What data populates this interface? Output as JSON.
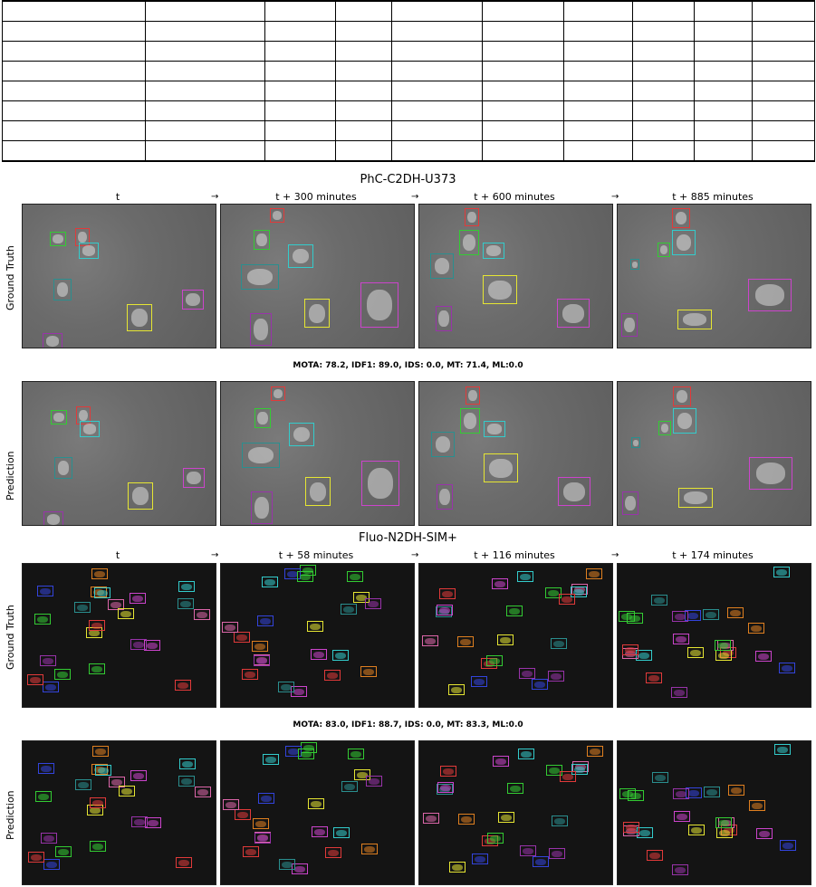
{
  "table": {
    "rows": 8,
    "cols": 10
  },
  "sections": [
    {
      "title": "PhC-C2DH-U373",
      "frame_labels": [
        "t",
        "t + 300 minutes",
        "t + 600 minutes",
        "t + 885 minutes"
      ],
      "arrow": "→",
      "row_labels": [
        "Ground Truth",
        "Prediction"
      ],
      "metrics": "MOTA: 78.2, IDF1: 89.0, IDS: 0.0, MT: 71.4, ML:0.0"
    },
    {
      "title": "Fluo-N2DH-SIM+",
      "frame_labels": [
        "t",
        "t + 58 minutes",
        "t + 116 minutes",
        "t + 174 minutes"
      ],
      "arrow": "→",
      "row_labels": [
        "Ground Truth",
        "Prediction"
      ],
      "metrics": "MOTA: 83.0, IDF1: 88.7, IDS: 0.0, MT: 83.3, ML:0.0"
    }
  ],
  "colors": {
    "red": "#e23a3a",
    "green": "#33cc33",
    "cyan": "#33cccc",
    "teal": "#2a8f8f",
    "yellow": "#e6e633",
    "magenta": "#cc44cc",
    "violet": "#9933aa",
    "blue": "#3344dd",
    "orange": "#e08020",
    "pink": "#dd66aa"
  }
}
